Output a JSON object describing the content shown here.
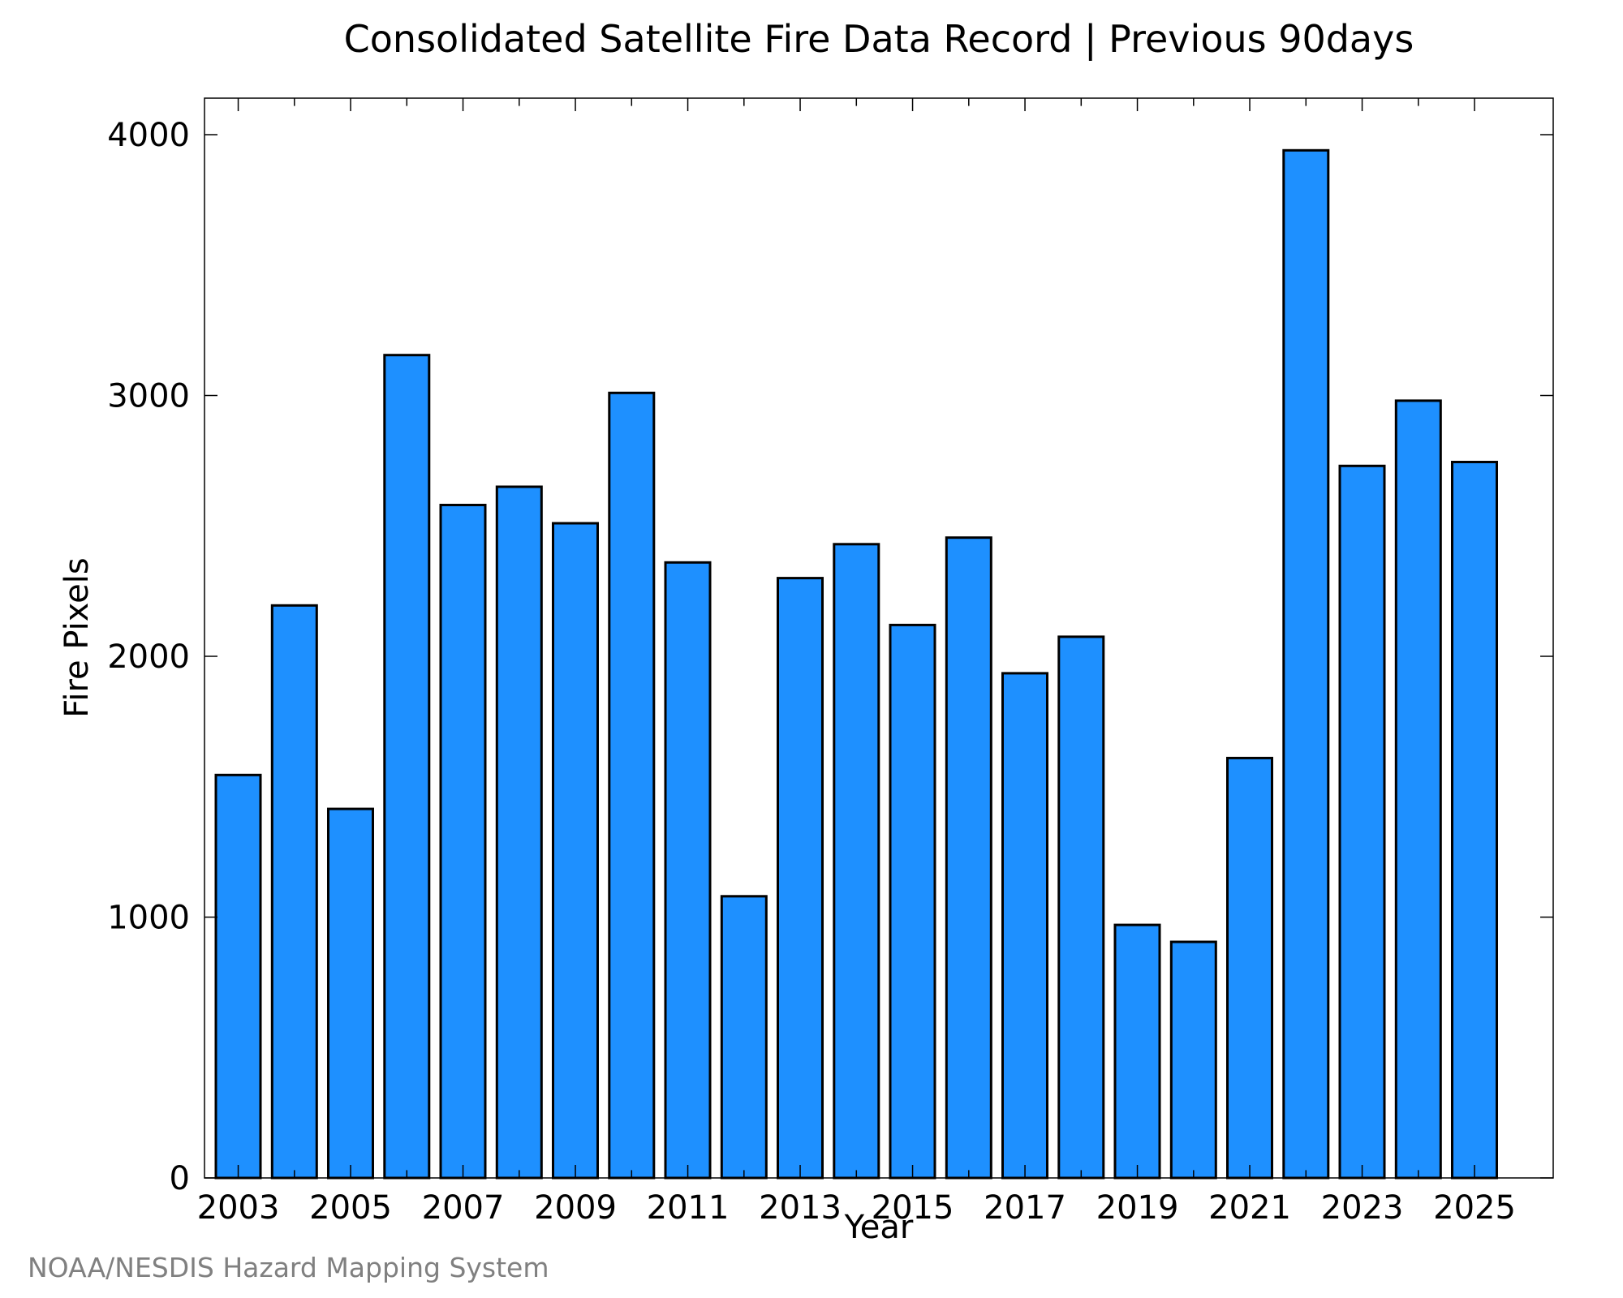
{
  "chart_data": {
    "type": "bar",
    "title": "Consolidated Satellite Fire Data Record | Previous 90days",
    "xlabel": "Year",
    "ylabel": "Fire Pixels",
    "categories": [
      "2003",
      "2004",
      "2005",
      "2006",
      "2007",
      "2008",
      "2009",
      "2010",
      "2011",
      "2012",
      "2013",
      "2014",
      "2015",
      "2016",
      "2017",
      "2018",
      "2019",
      "2020",
      "2021",
      "2022",
      "2023",
      "2024",
      "2025"
    ],
    "series": [
      {
        "values": [
          1545,
          2195,
          1415,
          3155,
          2580,
          2650,
          2510,
          3010,
          2360,
          1080,
          2300,
          2430,
          2120,
          2455,
          1935,
          2075,
          970,
          905,
          1610,
          3940,
          2730,
          2980,
          2745
        ],
        "color": "#1E90FF"
      }
    ],
    "bar_edge_color": "#000000",
    "xlim": [
      2002.4,
      2026.4
    ],
    "ylim": [
      0,
      4140
    ],
    "x_tick_labels": [
      "2003",
      "2005",
      "2007",
      "2009",
      "2011",
      "2013",
      "2015",
      "2017",
      "2019",
      "2021",
      "2023",
      "2025"
    ],
    "x_minor_ticks": [
      2004,
      2006,
      2008,
      2010,
      2012,
      2014,
      2016,
      2018,
      2020,
      2022,
      2024
    ],
    "y_ticks": [
      0,
      1000,
      2000,
      3000,
      4000
    ],
    "y_tick_labels": [
      "0",
      "1000",
      "2000",
      "3000",
      "4000"
    ],
    "grid": false,
    "legend": "none"
  },
  "credit": "NOAA/NESDIS Hazard Mapping System"
}
